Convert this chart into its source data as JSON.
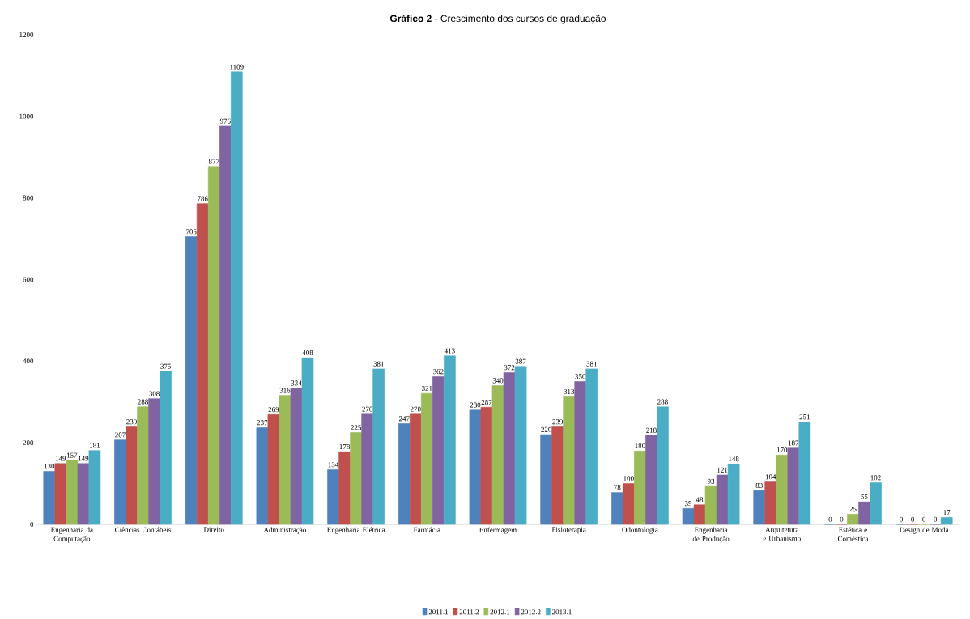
{
  "chart_data": {
    "type": "bar",
    "title": "**Gráfico 2** - Crescimento dos cursos de graduação",
    "categories": [
      "Engenharia da Computação",
      "Ciências Contábeis",
      "Direito",
      "Administração",
      "Engenharia Elétrica",
      "Farmácia",
      "Enfermagem",
      "Fisioterapia",
      "Odontologia",
      "Engenharia de Produção",
      "Arquitetura e Urbanismo",
      "Estética e Coméstica",
      "Design de Moda"
    ],
    "series": [
      {
        "name": "2011.1",
        "color": "#4f81bd",
        "values": [
          130,
          207,
          705,
          237,
          134,
          247,
          280,
          220,
          78,
          39,
          83,
          0,
          0
        ]
      },
      {
        "name": "2011.2",
        "color": "#c0504d",
        "values": [
          149,
          239,
          786,
          269,
          178,
          270,
          287,
          239,
          100,
          48,
          104,
          0,
          0
        ]
      },
      {
        "name": "2012.1",
        "color": "#9bbb59",
        "values": [
          157,
          288,
          877,
          316,
          225,
          321,
          340,
          313,
          180,
          93,
          170,
          25,
          0
        ]
      },
      {
        "name": "2012.2",
        "color": "#8064a2",
        "values": [
          149,
          308,
          976,
          334,
          270,
          362,
          372,
          350,
          218,
          121,
          187,
          55,
          0
        ]
      },
      {
        "name": "2013.1",
        "color": "#4bacc6",
        "values": [
          181,
          375,
          1109,
          408,
          381,
          413,
          387,
          381,
          288,
          148,
          251,
          102,
          17
        ]
      }
    ],
    "ylim": [
      0,
      1200
    ],
    "yticks": [
      0,
      200,
      400,
      600,
      800,
      1000,
      1200
    ],
    "data_labels": true,
    "legend": "bottom",
    "grid": false
  }
}
